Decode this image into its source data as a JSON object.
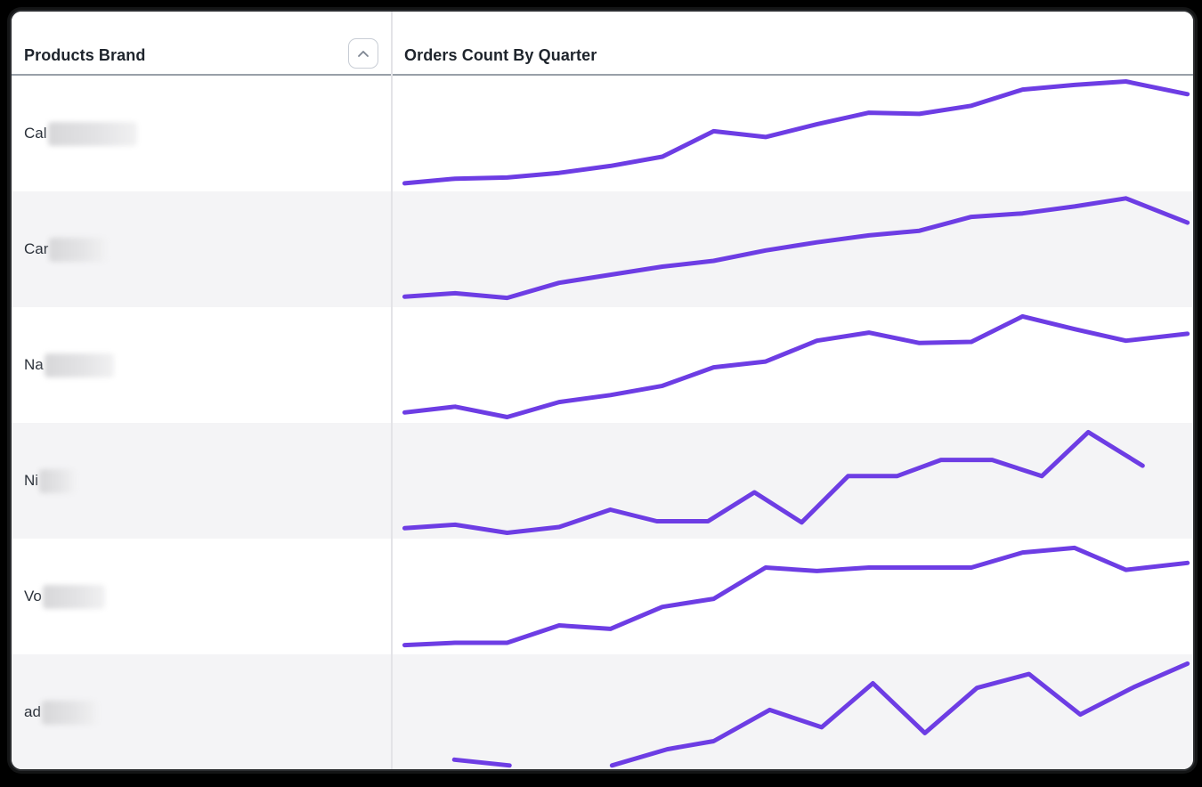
{
  "table": {
    "columns": [
      {
        "label": "Products Brand"
      },
      {
        "label": "Orders Count By Quarter"
      }
    ],
    "sort": {
      "icon": "chevron-up",
      "state": "ascending"
    },
    "rows": [
      {
        "brand_visible": "Cal",
        "redacted_width": 100
      },
      {
        "brand_visible": "Car",
        "redacted_width": 64
      },
      {
        "brand_visible": "Na",
        "redacted_width": 78
      },
      {
        "brand_visible": "Ni",
        "redacted_width": 40
      },
      {
        "brand_visible": "Vo",
        "redacted_width": 70
      },
      {
        "brand_visible": "ad",
        "redacted_width": 62
      }
    ]
  },
  "chart_data": {
    "type": "line",
    "subtype": "sparkline-per-table-row",
    "title": "Orders Count By Quarter",
    "xlabel": "quarter (tick labels not shown)",
    "ylabel": "relative orders count, 0-100 estimated from pixels (no axis shown)",
    "grid": false,
    "legend": false,
    "line_color": "#6D3DE4",
    "series": [
      {
        "name": "Cal… (redacted)",
        "segments": [
          [
            [
              1.5,
              7
            ],
            [
              7.8,
              11
            ],
            [
              14.3,
              12
            ],
            [
              20.8,
              16
            ],
            [
              27.2,
              22
            ],
            [
              33.7,
              30
            ],
            [
              40.1,
              52
            ],
            [
              46.6,
              47
            ],
            [
              53.0,
              58
            ],
            [
              59.5,
              68
            ],
            [
              65.8,
              67
            ],
            [
              72.3,
              74
            ],
            [
              78.7,
              88
            ],
            [
              85.2,
              92
            ],
            [
              91.6,
              95
            ],
            [
              99.3,
              84
            ]
          ]
        ]
      },
      {
        "name": "Car… (redacted)",
        "segments": [
          [
            [
              1.5,
              9
            ],
            [
              7.8,
              12
            ],
            [
              14.3,
              8
            ],
            [
              20.8,
              21
            ],
            [
              27.2,
              28
            ],
            [
              33.7,
              35
            ],
            [
              40.1,
              40
            ],
            [
              46.6,
              49
            ],
            [
              53.0,
              56
            ],
            [
              59.5,
              62
            ],
            [
              65.8,
              66
            ],
            [
              72.3,
              78
            ],
            [
              78.7,
              81
            ],
            [
              85.2,
              87
            ],
            [
              91.6,
              94
            ],
            [
              99.3,
              73
            ]
          ]
        ]
      },
      {
        "name": "Na… (redacted)",
        "segments": [
          [
            [
              1.5,
              9
            ],
            [
              7.8,
              14
            ],
            [
              14.3,
              5
            ],
            [
              20.8,
              18
            ],
            [
              27.2,
              24
            ],
            [
              33.7,
              32
            ],
            [
              40.1,
              48
            ],
            [
              46.6,
              53
            ],
            [
              53.0,
              71
            ],
            [
              59.5,
              78
            ],
            [
              65.8,
              69
            ],
            [
              72.3,
              70
            ],
            [
              78.7,
              92
            ],
            [
              85.2,
              81
            ],
            [
              91.6,
              71
            ],
            [
              99.3,
              77
            ]
          ]
        ]
      },
      {
        "name": "Ni… (redacted)",
        "segments": [
          [
            [
              1.5,
              9
            ],
            [
              7.8,
              12
            ],
            [
              14.3,
              5
            ],
            [
              20.8,
              10
            ],
            [
              27.2,
              25
            ],
            [
              33.0,
              15
            ],
            [
              39.4,
              15
            ],
            [
              45.2,
              40
            ],
            [
              51.1,
              14
            ],
            [
              56.9,
              54
            ],
            [
              63.0,
              54
            ],
            [
              68.5,
              68
            ],
            [
              74.9,
              68
            ],
            [
              81.1,
              54
            ],
            [
              86.9,
              92
            ],
            [
              93.7,
              63
            ]
          ]
        ]
      },
      {
        "name": "Vo… (redacted)",
        "segments": [
          [
            [
              1.5,
              8
            ],
            [
              7.8,
              10
            ],
            [
              14.3,
              10
            ],
            [
              20.8,
              25
            ],
            [
              27.2,
              22
            ],
            [
              33.7,
              41
            ],
            [
              40.1,
              48
            ],
            [
              46.6,
              75
            ],
            [
              53.0,
              72
            ],
            [
              59.5,
              75
            ],
            [
              65.8,
              75
            ],
            [
              72.3,
              75
            ],
            [
              78.7,
              88
            ],
            [
              85.2,
              92
            ],
            [
              91.6,
              73
            ],
            [
              99.3,
              79
            ]
          ]
        ]
      },
      {
        "name": "ad… (redacted)",
        "segments": [
          [
            [
              7.7,
              9
            ],
            [
              14.6,
              4
            ]
          ],
          [
            [
              27.4,
              4
            ],
            [
              34.3,
              18
            ],
            [
              40.1,
              25
            ],
            [
              47.1,
              52
            ],
            [
              53.6,
              37
            ],
            [
              60.0,
              75
            ],
            [
              66.5,
              32
            ],
            [
              73.0,
              71
            ],
            [
              79.5,
              83
            ],
            [
              85.9,
              48
            ],
            [
              92.7,
              72
            ],
            [
              99.3,
              92
            ]
          ]
        ]
      }
    ]
  }
}
